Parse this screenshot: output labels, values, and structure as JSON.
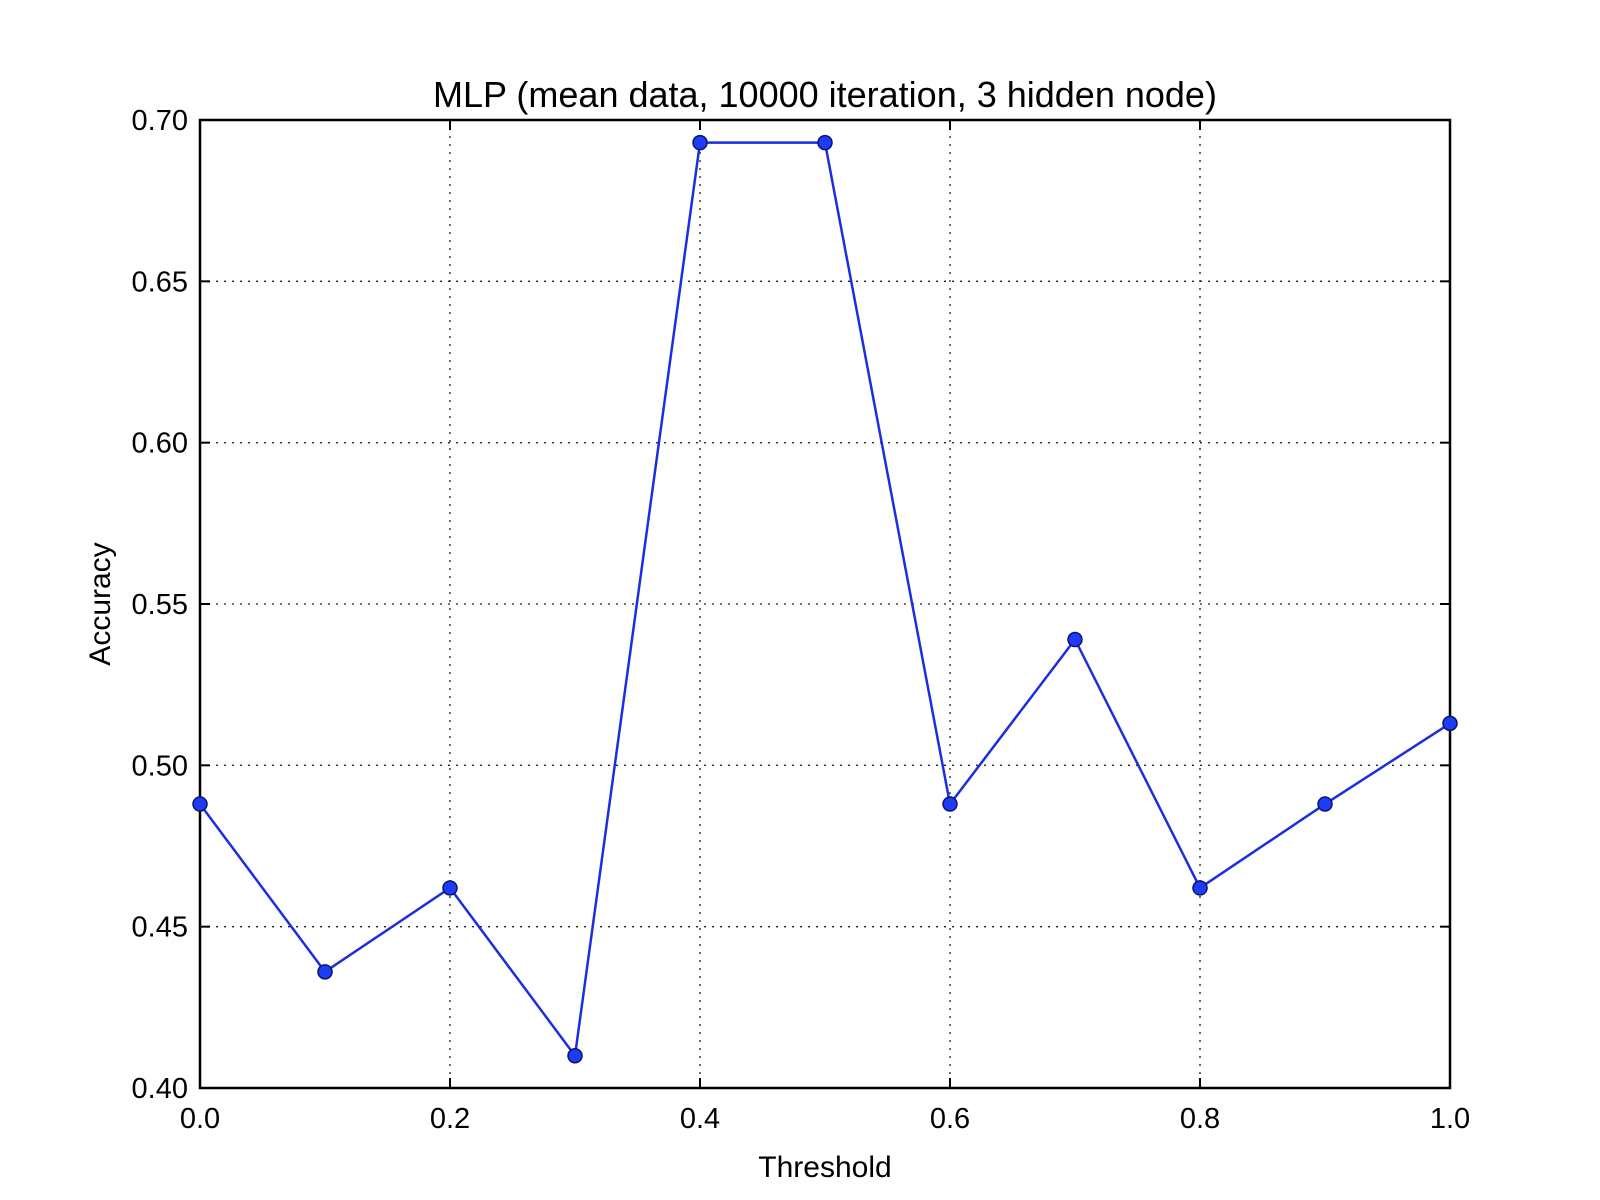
{
  "chart_data": {
    "type": "line",
    "title": "MLP (mean data, 10000 iteration, 3 hidden node)",
    "xlabel": "Threshold",
    "ylabel": "Accuracy",
    "xlim": [
      0.0,
      1.0
    ],
    "ylim": [
      0.4,
      0.7
    ],
    "x_ticks": [
      "0.0",
      "0.2",
      "0.4",
      "0.6",
      "0.8",
      "1.0"
    ],
    "y_ticks": [
      "0.40",
      "0.45",
      "0.50",
      "0.55",
      "0.60",
      "0.65",
      "0.70"
    ],
    "grid": true,
    "series": [
      {
        "x": [
          0.0,
          0.1,
          0.2,
          0.3,
          0.4,
          0.5,
          0.6,
          0.7,
          0.8,
          0.9,
          1.0
        ],
        "values": [
          0.488,
          0.436,
          0.462,
          0.41,
          0.693,
          0.693,
          0.488,
          0.539,
          0.462,
          0.488,
          0.513
        ],
        "color": "#1a2fe0",
        "marker_color": "#1e3cf5"
      }
    ]
  }
}
